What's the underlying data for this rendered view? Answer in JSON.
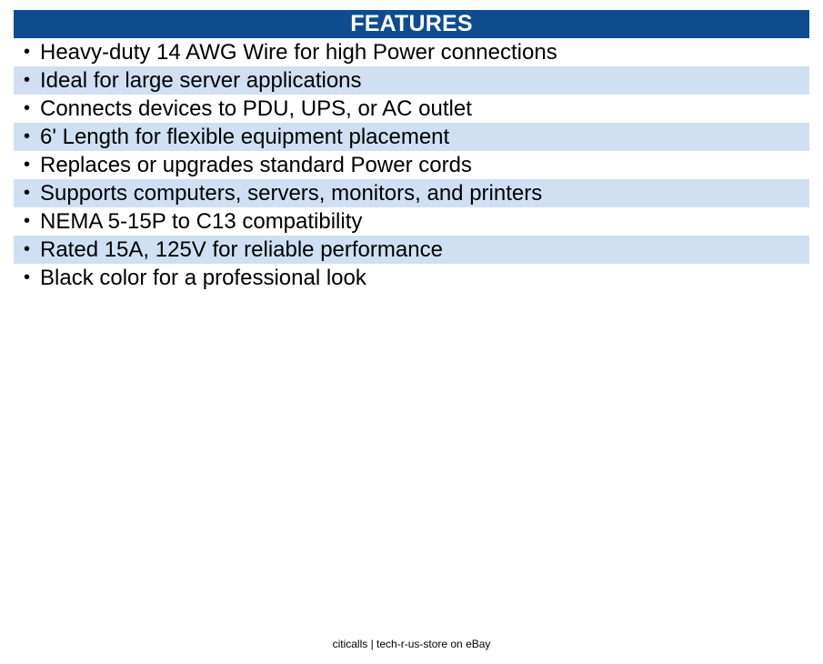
{
  "header": {
    "title": "FEATURES"
  },
  "features": [
    "Heavy-duty 14 AWG Wire for high Power connections",
    "Ideal for large server applications",
    "Connects devices to PDU, UPS, or AC outlet",
    "6' Length for flexible equipment placement",
    "Replaces or upgrades standard Power cords",
    "Supports computers, servers, monitors, and printers",
    "NEMA 5-15P to C13 compatibility",
    "Rated 15A, 125V for reliable performance",
    "Black color for a professional look"
  ],
  "bullet_symbol": "•",
  "footer": {
    "credit": "citicalls | tech-r-us-store on eBay"
  },
  "colors": {
    "header_bg": "#0f4c8f",
    "header_text": "#ffffff",
    "alt_row_bg": "#d0e0f2",
    "text": "#000000"
  }
}
